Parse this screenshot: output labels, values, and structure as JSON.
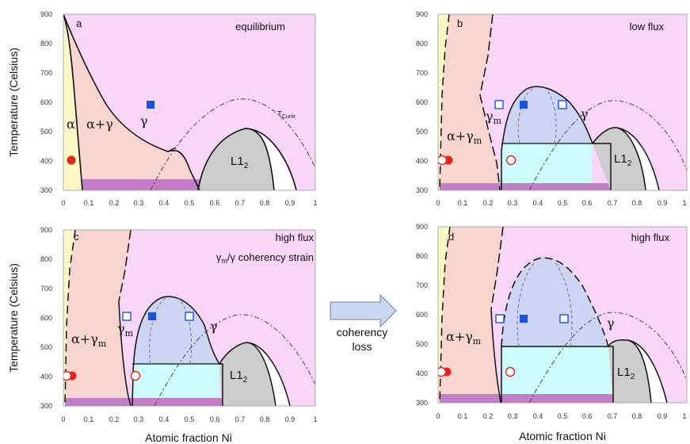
{
  "figure": {
    "ylabel": "Temperature (Celsius)",
    "xlabel": "Atomic fraction Ni",
    "arrow_label_line1": "coherency",
    "arrow_label_line2": "loss",
    "colors": {
      "alpha": "#fbf8c6",
      "alpha_gamma": "#f8d5cf",
      "gamma": "#f9d5f8",
      "gamma_m": "#cdd4f4",
      "cyan": "#cdfbfb",
      "l12": "#cdcdcd",
      "purple": "#c27ec7",
      "blue": "#1552ea",
      "red": "#e8231c"
    }
  },
  "chart_data": [
    {
      "type": "phase-diagram",
      "panel": "a",
      "condition": "equilibrium",
      "xlim": [
        0,
        1
      ],
      "ylim": [
        300,
        900
      ],
      "xticks": [
        "0",
        "0.1",
        "0.2",
        "0.3",
        "0.4",
        "0.5",
        "0.6",
        "0.7",
        "0.8",
        "0.9",
        "1"
      ],
      "yticks": [
        "300",
        "400",
        "500",
        "600",
        "700",
        "800",
        "900"
      ],
      "phase_labels": [
        {
          "text": "α",
          "x": 0.02,
          "y": 540
        },
        {
          "text": "α+γ",
          "x": 0.14,
          "y": 540
        },
        {
          "text": "γ",
          "x": 0.32,
          "y": 545
        },
        {
          "text": "L1",
          "sub": "2",
          "x": 0.67,
          "y": 405
        },
        {
          "text": "T",
          "sub": "Curie",
          "x": 0.85,
          "y": 570
        }
      ],
      "markers": [
        {
          "shape": "filled-square",
          "x": 0.34,
          "y": 592
        },
        {
          "shape": "filled-circle",
          "x": 0.03,
          "y": 400
        }
      ]
    },
    {
      "type": "phase-diagram",
      "panel": "b",
      "condition": "low flux",
      "xlim": [
        0,
        1
      ],
      "ylim": [
        300,
        900
      ],
      "xticks": [
        "0",
        "0.1",
        "0.2",
        "0.3",
        "0.4",
        "0.5",
        "0.6",
        "0.7",
        "0.8",
        "0.9",
        "1"
      ],
      "yticks": [
        "300",
        "400",
        "500",
        "600",
        "700",
        "800",
        "900"
      ],
      "phase_labels": [
        {
          "text": "α+γ",
          "sub": "m",
          "x": 0.03,
          "y": 482
        },
        {
          "text": "γ",
          "sub": "m",
          "x": 0.22,
          "y": 555
        },
        {
          "text": "γ",
          "x": 0.57,
          "y": 560
        },
        {
          "text": "L1",
          "sub": "2",
          "x": 0.7,
          "y": 405
        }
      ],
      "markers": [
        {
          "shape": "filled-square",
          "x": 0.35,
          "y": 590
        },
        {
          "shape": "open-square",
          "x": 0.25,
          "y": 590
        },
        {
          "shape": "open-square",
          "x": 0.49,
          "y": 590
        },
        {
          "shape": "filled-circle",
          "x": 0.04,
          "y": 400
        },
        {
          "shape": "open-circle",
          "x": 0.01,
          "y": 400
        },
        {
          "shape": "open-circle",
          "x": 0.29,
          "y": 400
        }
      ]
    },
    {
      "type": "phase-diagram",
      "panel": "c",
      "condition": "high flux",
      "annotation": "γm/γ coherency strain",
      "xlim": [
        0,
        1
      ],
      "ylim": [
        300,
        900
      ],
      "xticks": [
        "0",
        "0.1",
        "0.2",
        "0.3",
        "0.4",
        "0.5",
        "0.6",
        "0.7",
        "0.8",
        "0.9",
        "1"
      ],
      "yticks": [
        "300",
        "400",
        "500",
        "600",
        "700",
        "800",
        "900"
      ],
      "phase_labels": [
        {
          "text": "α+γ",
          "sub": "m",
          "x": 0.03,
          "y": 524
        },
        {
          "text": "γ",
          "sub": "m",
          "x": 0.21,
          "y": 555
        },
        {
          "text": "γ",
          "x": 0.59,
          "y": 565
        },
        {
          "text": "L1",
          "sub": "2",
          "x": 0.66,
          "y": 405
        }
      ],
      "markers": [
        {
          "shape": "filled-square",
          "x": 0.35,
          "y": 592
        },
        {
          "shape": "open-square",
          "x": 0.25,
          "y": 592
        },
        {
          "shape": "open-square",
          "x": 0.5,
          "y": 592
        },
        {
          "shape": "filled-circle",
          "x": 0.03,
          "y": 400
        },
        {
          "shape": "open-circle",
          "x": 0.01,
          "y": 400
        },
        {
          "shape": "open-circle",
          "x": 0.28,
          "y": 400
        }
      ]
    },
    {
      "type": "phase-diagram",
      "panel": "d",
      "condition": "high flux",
      "xlim": [
        0,
        1
      ],
      "ylim": [
        300,
        900
      ],
      "xticks": [
        "0",
        "0.1",
        "0.2",
        "0.3",
        "0.4",
        "0.5",
        "0.6",
        "0.7",
        "0.8",
        "0.9",
        "1"
      ],
      "yticks": [
        "300",
        "400",
        "500",
        "600",
        "700",
        "800",
        "900"
      ],
      "phase_labels": [
        {
          "text": "α+γ",
          "sub": "m",
          "x": 0.03,
          "y": 510
        },
        {
          "text": "γ",
          "x": 0.68,
          "y": 580
        },
        {
          "text": "L1",
          "sub": "2",
          "x": 0.71,
          "y": 405
        }
      ],
      "markers": [
        {
          "shape": "filled-square",
          "x": 0.35,
          "y": 585
        },
        {
          "shape": "open-square",
          "x": 0.25,
          "y": 585
        },
        {
          "shape": "open-square",
          "x": 0.51,
          "y": 585
        },
        {
          "shape": "filled-circle",
          "x": 0.04,
          "y": 400
        },
        {
          "shape": "open-circle",
          "x": 0.01,
          "y": 400
        },
        {
          "shape": "open-circle",
          "x": 0.29,
          "y": 400
        }
      ]
    }
  ]
}
